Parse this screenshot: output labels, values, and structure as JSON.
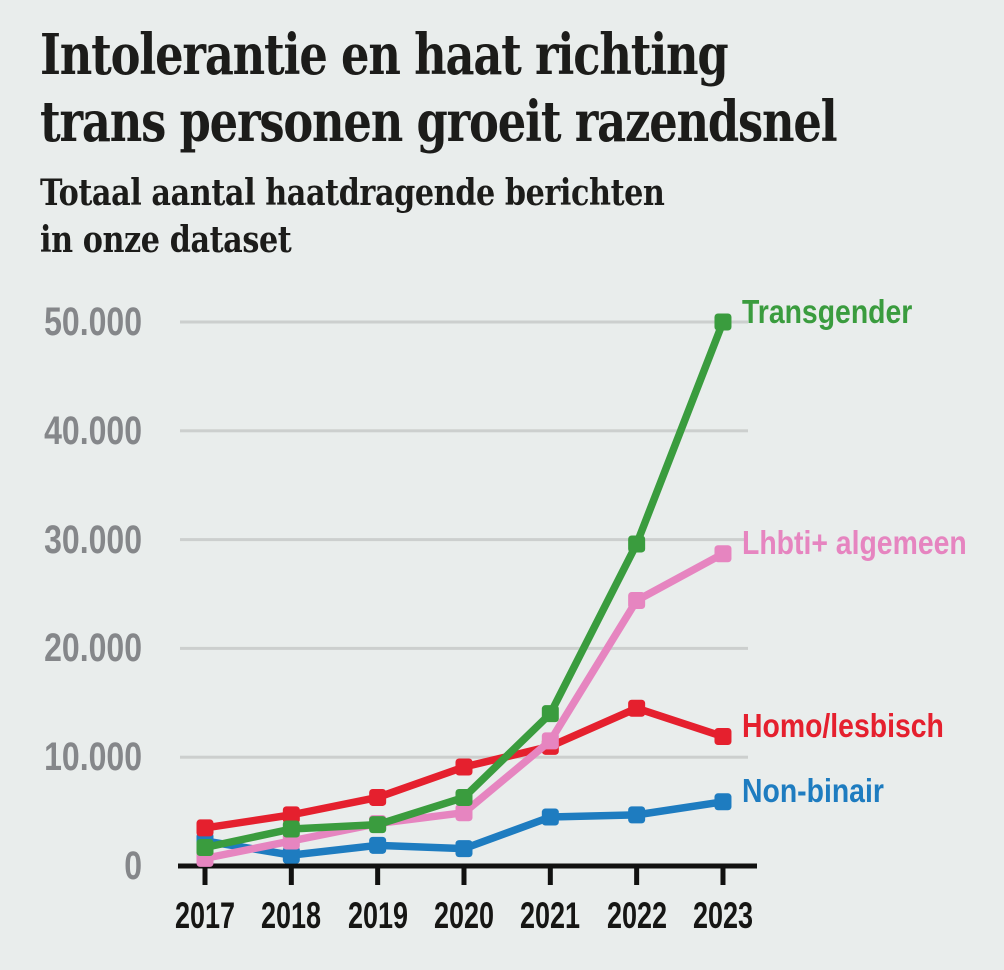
{
  "page": {
    "background_color": "#e9edec"
  },
  "header": {
    "title_lines": [
      "Intolerantie en haat richting",
      "trans personen groeit razendsnel"
    ],
    "subtitle_lines": [
      "Totaal aantal haatdragende berichten",
      "in onze dataset"
    ]
  },
  "chart_data": {
    "type": "line",
    "title": "Intolerantie en haat richting trans personen groeit razendsnel",
    "subtitle": "Totaal aantal haatdragende berichten in onze dataset",
    "x": [
      2017,
      2018,
      2019,
      2020,
      2021,
      2022,
      2023
    ],
    "xtick_labels": [
      "2017",
      "2018",
      "2019",
      "2020",
      "2021",
      "2022",
      "2023"
    ],
    "series": [
      {
        "name": "Non-binair",
        "color": "#1e7cc0",
        "values": [
          2300,
          1000,
          1900,
          1600,
          4500,
          4700,
          5900
        ]
      },
      {
        "name": "Homo/lesbisch",
        "color": "#e5202e",
        "values": [
          3500,
          4700,
          6300,
          9100,
          11000,
          14500,
          11900
        ]
      },
      {
        "name": "Lhbti+ algemeen",
        "color": "#e685c0",
        "values": [
          700,
          2300,
          3900,
          4900,
          11500,
          24400,
          28700
        ]
      },
      {
        "name": "Transgender",
        "color": "#3a9c3e",
        "values": [
          1700,
          3400,
          3800,
          6300,
          14000,
          29600,
          50000
        ]
      }
    ],
    "ylim": [
      0,
      50000
    ],
    "ytick_values": [
      0,
      10000,
      20000,
      30000,
      40000,
      50000
    ],
    "ytick_labels": [
      "0",
      "10.000",
      "20.000",
      "30.000",
      "40.000",
      "50.000"
    ],
    "grid": "horizontal",
    "grid_color": "#cccfce",
    "axis_color": "#111110",
    "ytick_label_color": "#85878a",
    "legend_position": "right-of-line-end"
  }
}
